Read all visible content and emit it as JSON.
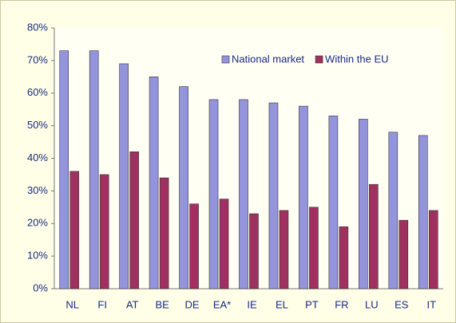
{
  "chart_data": {
    "type": "bar",
    "categories": [
      "NL",
      "FI",
      "AT",
      "BE",
      "DE",
      "EA*",
      "IE",
      "EL",
      "PT",
      "FR",
      "LU",
      "ES",
      "IT"
    ],
    "series": [
      {
        "name": "National market",
        "color": "#9494dc",
        "values": [
          73,
          73,
          69,
          65,
          62,
          58,
          58,
          57,
          56,
          53,
          52,
          48,
          47
        ]
      },
      {
        "name": "Within the EU",
        "color": "#a0305f",
        "values": [
          36,
          35,
          42,
          34,
          26,
          27.5,
          23,
          24,
          25,
          19,
          32,
          21,
          24
        ]
      }
    ],
    "ylim": [
      0,
      80
    ],
    "yticks": [
      {
        "value": 0,
        "label": "0%"
      },
      {
        "value": 10,
        "label": "10%"
      },
      {
        "value": 20,
        "label": "20%"
      },
      {
        "value": 30,
        "label": "30%"
      },
      {
        "value": 40,
        "label": "40%"
      },
      {
        "value": 50,
        "label": "50%"
      },
      {
        "value": 60,
        "label": "60%"
      },
      {
        "value": 70,
        "label": "70%"
      },
      {
        "value": 80,
        "label": "80%"
      }
    ],
    "legend": "top-right"
  }
}
